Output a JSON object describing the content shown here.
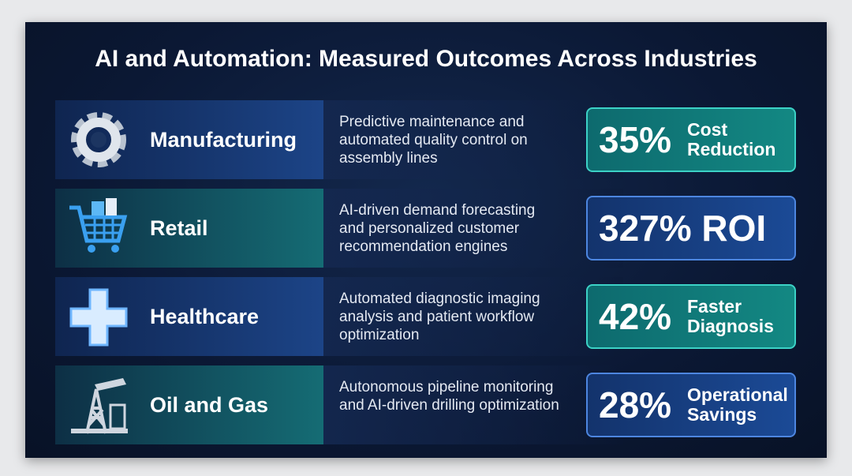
{
  "title": "AI and Automation: Measured Outcomes Across Industries",
  "rows": [
    {
      "industry": "Manufacturing",
      "description": "Predictive maintenance and automated quality control on assembly lines",
      "metric": "35%",
      "metric_label": "Cost Reduction"
    },
    {
      "industry": "Retail",
      "description": "AI-driven demand forecasting and personalized customer recommendation engines",
      "metric": "327% ROI"
    },
    {
      "industry": "Healthcare",
      "description": "Automated diagnostic imaging analysis and patient workflow optimization",
      "metric": "42%",
      "metric_label": "Faster Diagnosis"
    },
    {
      "industry": "Oil and Gas",
      "description": "Autonomous pipeline monitoring and AI-driven drilling optimization",
      "metric": "28%",
      "metric_label": "Operational Savings"
    }
  ]
}
